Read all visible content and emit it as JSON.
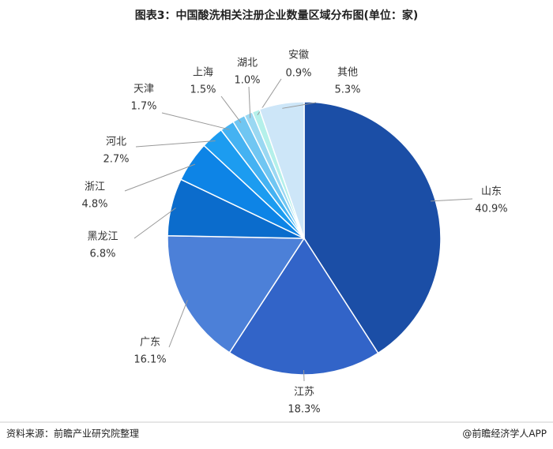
{
  "chart_data": {
    "type": "pie",
    "title": "图表3：中国酸洗相关注册企业数量区域分布图(单位：家)",
    "categories": [
      "山东",
      "江苏",
      "广东",
      "黑龙江",
      "浙江",
      "河北",
      "天津",
      "上海",
      "湖北",
      "安徽",
      "其他"
    ],
    "values": [
      40.9,
      18.3,
      16.1,
      6.8,
      4.8,
      2.7,
      1.7,
      1.5,
      1.0,
      0.9,
      5.3
    ],
    "value_labels": [
      "40.9%",
      "18.3%",
      "16.1%",
      "6.8%",
      "4.8%",
      "2.7%",
      "1.7%",
      "1.5%",
      "1.0%",
      "0.9%",
      "5.3%"
    ],
    "colors": [
      "#1b4ea6",
      "#3264c8",
      "#4c80d8",
      "#0b6ccc",
      "#0d84e6",
      "#1c9cf0",
      "#44b2f2",
      "#70c6f2",
      "#9ad8f2",
      "#b4f0ea",
      "#cde6f8"
    ],
    "source": "资料来源：前瞻产业研究院整理",
    "credit": "@前瞻经济学人APP"
  }
}
